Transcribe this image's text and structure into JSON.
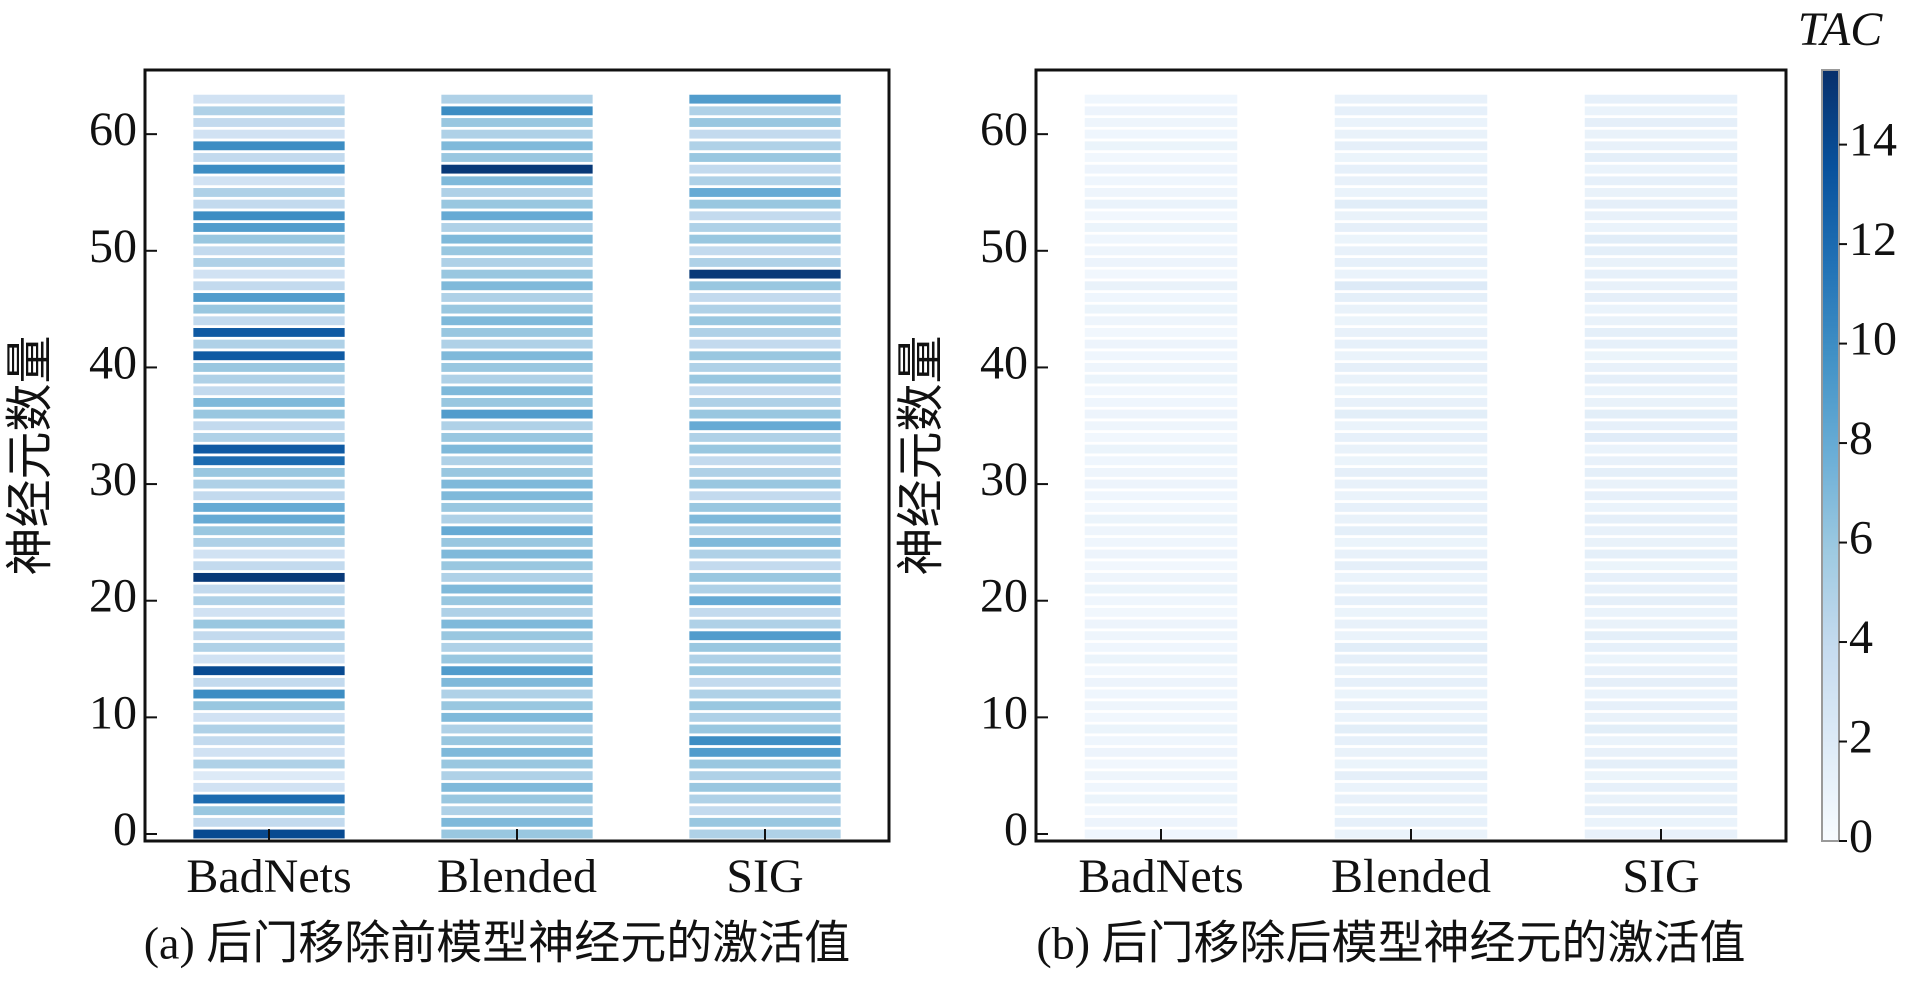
{
  "chart_data": [
    {
      "type": "heatmap",
      "title": "(a) 后门移除前模型神经元的激活值",
      "ylabel": "神经元数量",
      "colormap": "Blues",
      "ylim": [
        -0.6,
        65.5
      ],
      "yticks": [
        0,
        10,
        20,
        30,
        40,
        50,
        60
      ],
      "clim": [
        0,
        15.5
      ],
      "series": [
        {
          "name": "BadNets",
          "values": [
            14,
            4,
            6,
            12,
            3,
            2,
            5,
            3,
            4,
            5,
            3,
            6,
            10,
            4,
            14,
            3,
            5,
            4,
            6,
            3,
            5,
            4,
            15,
            4,
            3,
            5,
            6,
            8,
            8,
            4,
            5,
            6,
            12,
            13,
            5,
            4,
            6,
            7,
            4,
            5,
            6,
            13,
            5,
            13,
            4,
            6,
            9,
            4,
            3,
            5,
            4,
            6,
            9,
            10,
            4,
            5,
            3,
            10,
            4,
            10,
            3,
            4,
            5,
            3
          ]
        },
        {
          "name": "Blended",
          "values": [
            6,
            7,
            5,
            6,
            7,
            5,
            6,
            7,
            6,
            5,
            7,
            6,
            5,
            7,
            9,
            6,
            5,
            6,
            7,
            5,
            6,
            7,
            5,
            6,
            7,
            6,
            8,
            5,
            6,
            7,
            7,
            6,
            5,
            7,
            6,
            5,
            9,
            6,
            7,
            5,
            6,
            7,
            5,
            6,
            7,
            6,
            5,
            7,
            6,
            5,
            6,
            7,
            5,
            8,
            6,
            5,
            7,
            15,
            6,
            7,
            5,
            6,
            10,
            5
          ]
        },
        {
          "name": "SIG",
          "values": [
            5,
            6,
            4,
            5,
            6,
            5,
            6,
            9,
            10,
            6,
            5,
            6,
            5,
            4,
            6,
            5,
            6,
            9,
            5,
            4,
            8,
            5,
            6,
            4,
            5,
            7,
            5,
            7,
            6,
            4,
            6,
            5,
            4,
            6,
            5,
            8,
            6,
            5,
            4,
            6,
            5,
            6,
            4,
            5,
            6,
            5,
            4,
            6,
            15,
            5,
            4,
            6,
            5,
            4,
            6,
            8,
            5,
            4,
            6,
            5,
            4,
            6,
            5,
            9
          ]
        }
      ]
    },
    {
      "type": "heatmap",
      "title": "(b) 后门移除后模型神经元的激活值",
      "ylabel": "神经元数量",
      "colormap": "Blues",
      "ylim": [
        -0.6,
        65.5
      ],
      "yticks": [
        0,
        10,
        20,
        30,
        40,
        50,
        60
      ],
      "clim": [
        0,
        15.5
      ],
      "colorbar": {
        "label": "TAC",
        "ticks": [
          0,
          2,
          4,
          6,
          8,
          10,
          12,
          14
        ]
      },
      "series": [
        {
          "name": "BadNets",
          "values": [
            0.6,
            0.8,
            0.5,
            0.9,
            0.6,
            0.7,
            0.5,
            0.8,
            0.6,
            0.9,
            0.5,
            0.7,
            0.6,
            0.8,
            0.5,
            0.9,
            0.6,
            0.7,
            0.8,
            0.5,
            0.6,
            0.9,
            0.7,
            0.5,
            0.8,
            0.6,
            0.7,
            0.9,
            0.5,
            0.6,
            0.8,
            0.7,
            0.6,
            0.9,
            0.5,
            0.7,
            0.8,
            0.6,
            0.5,
            0.9,
            0.7,
            0.6,
            0.8,
            0.5,
            0.7,
            0.9,
            0.6,
            1.1,
            0.5,
            0.8,
            0.7,
            0.6,
            0.9,
            0.5,
            1.0,
            0.7,
            0.6,
            0.8,
            0.5,
            0.9,
            0.6,
            0.7,
            0.8,
            0.6
          ]
        },
        {
          "name": "Blended",
          "values": [
            1.0,
            1.3,
            0.9,
            1.2,
            1.0,
            1.4,
            0.9,
            1.1,
            1.3,
            1.6,
            1.0,
            1.2,
            0.9,
            1.3,
            1.1,
            1.4,
            1.7,
            1.0,
            1.2,
            0.9,
            1.3,
            1.1,
            1.0,
            1.4,
            1.2,
            0.9,
            1.5,
            1.1,
            1.3,
            1.0,
            1.2,
            1.4,
            0.9,
            1.1,
            1.3,
            1.0,
            1.6,
            1.2,
            0.9,
            1.1,
            1.4,
            1.0,
            1.3,
            1.2,
            0.9,
            1.1,
            1.5,
            2.0,
            1.0,
            1.3,
            1.2,
            0.9,
            1.4,
            1.1,
            1.7,
            1.0,
            1.2,
            1.3,
            0.9,
            1.4,
            1.1,
            1.0,
            1.3,
            1.2
          ]
        },
        {
          "name": "SIG",
          "values": [
            1.2,
            1.0,
            1.4,
            1.1,
            1.3,
            0.9,
            1.5,
            1.2,
            1.0,
            1.6,
            1.1,
            1.3,
            1.0,
            1.4,
            1.2,
            0.9,
            1.3,
            1.5,
            1.1,
            1.0,
            1.4,
            1.2,
            1.3,
            0.9,
            1.5,
            1.1,
            1.2,
            1.4,
            1.0,
            1.3,
            1.1,
            1.5,
            1.2,
            1.0,
            1.8,
            1.3,
            1.6,
            1.1,
            1.0,
            1.4,
            1.2,
            0.9,
            1.3,
            1.5,
            1.1,
            1.0,
            1.4,
            1.2,
            1.3,
            1.1,
            1.5,
            1.7,
            1.0,
            1.2,
            1.4,
            1.1,
            1.3,
            1.0,
            1.5,
            1.2,
            1.1,
            1.4,
            1.0,
            1.3
          ]
        }
      ]
    }
  ]
}
